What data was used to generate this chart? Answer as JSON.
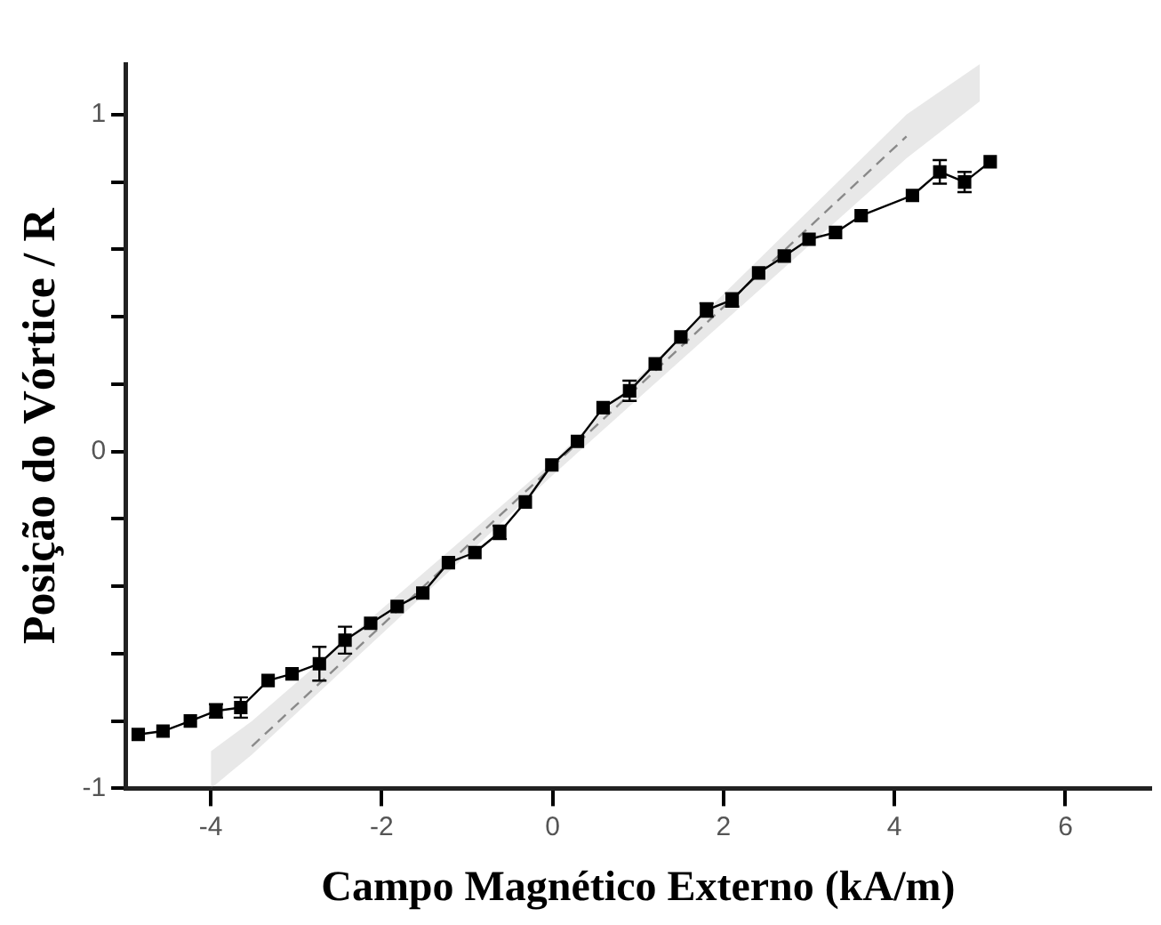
{
  "chart_data": {
    "type": "line",
    "xlabel": "Campo Magnético Externo (kA/m)",
    "ylabel": "Posição do Vórtice / R",
    "xlim": [
      -5,
      7
    ],
    "xticks": [
      -4,
      -2,
      0,
      2,
      4,
      6
    ],
    "ylim": [
      -1,
      1.15
    ],
    "yticks": [
      -1,
      {
        "value": -0.8,
        "label": null
      },
      {
        "value": -0.6,
        "label": null
      },
      {
        "value": -0.4,
        "label": null
      },
      {
        "value": -0.2,
        "label": null
      },
      0,
      {
        "value": 0.2,
        "label": null
      },
      {
        "value": 0.4,
        "label": null
      },
      {
        "value": 0.6,
        "label": null
      },
      {
        "value": 0.8,
        "label": null
      },
      1
    ],
    "grid": false,
    "legend": false,
    "series": [
      {
        "color": "#8a8a8a",
        "line_style": "dashed",
        "marker": "none",
        "x": [
          -4.0,
          -3.52,
          0,
          4.14,
          5.0
        ],
        "values": [
          null,
          -0.875,
          -0.044,
          0.935,
          null
        ],
        "lower": [
          -1.0,
          -0.9,
          -0.07,
          0.87,
          1.04
        ],
        "upper": [
          -0.89,
          -0.8,
          -0.03,
          1.0,
          1.15
        ]
      },
      {
        "color": "#000000",
        "line_style": "solid",
        "marker": "square",
        "x": [
          -4.85,
          -4.56,
          -4.24,
          -3.94,
          -3.65,
          -3.33,
          -3.05,
          -2.73,
          -2.43,
          -2.13,
          -1.82,
          -1.52,
          -1.22,
          -0.91,
          -0.62,
          -0.32,
          -0.01,
          0.29,
          0.59,
          0.9,
          1.2,
          1.5,
          1.8,
          2.1,
          2.41,
          2.71,
          3.0,
          3.31,
          3.61,
          4.21,
          4.53,
          4.82,
          5.12
        ],
        "values": [
          -0.84,
          -0.83,
          -0.8,
          -0.77,
          -0.76,
          -0.68,
          -0.66,
          -0.63,
          -0.56,
          -0.51,
          -0.46,
          -0.42,
          -0.33,
          -0.3,
          -0.24,
          -0.15,
          -0.04,
          0.03,
          0.13,
          0.18,
          0.26,
          0.34,
          0.42,
          0.45,
          0.53,
          0.58,
          0.63,
          0.65,
          0.7,
          0.76,
          0.83,
          0.8,
          0.86
        ],
        "errors": [
          null,
          null,
          null,
          0.02,
          0.03,
          null,
          null,
          0.05,
          0.04,
          null,
          null,
          null,
          null,
          null,
          0.02,
          null,
          null,
          null,
          null,
          0.03,
          null,
          null,
          0.02,
          0.02,
          null,
          null,
          null,
          null,
          null,
          null,
          0.035,
          0.03,
          null
        ]
      }
    ]
  }
}
